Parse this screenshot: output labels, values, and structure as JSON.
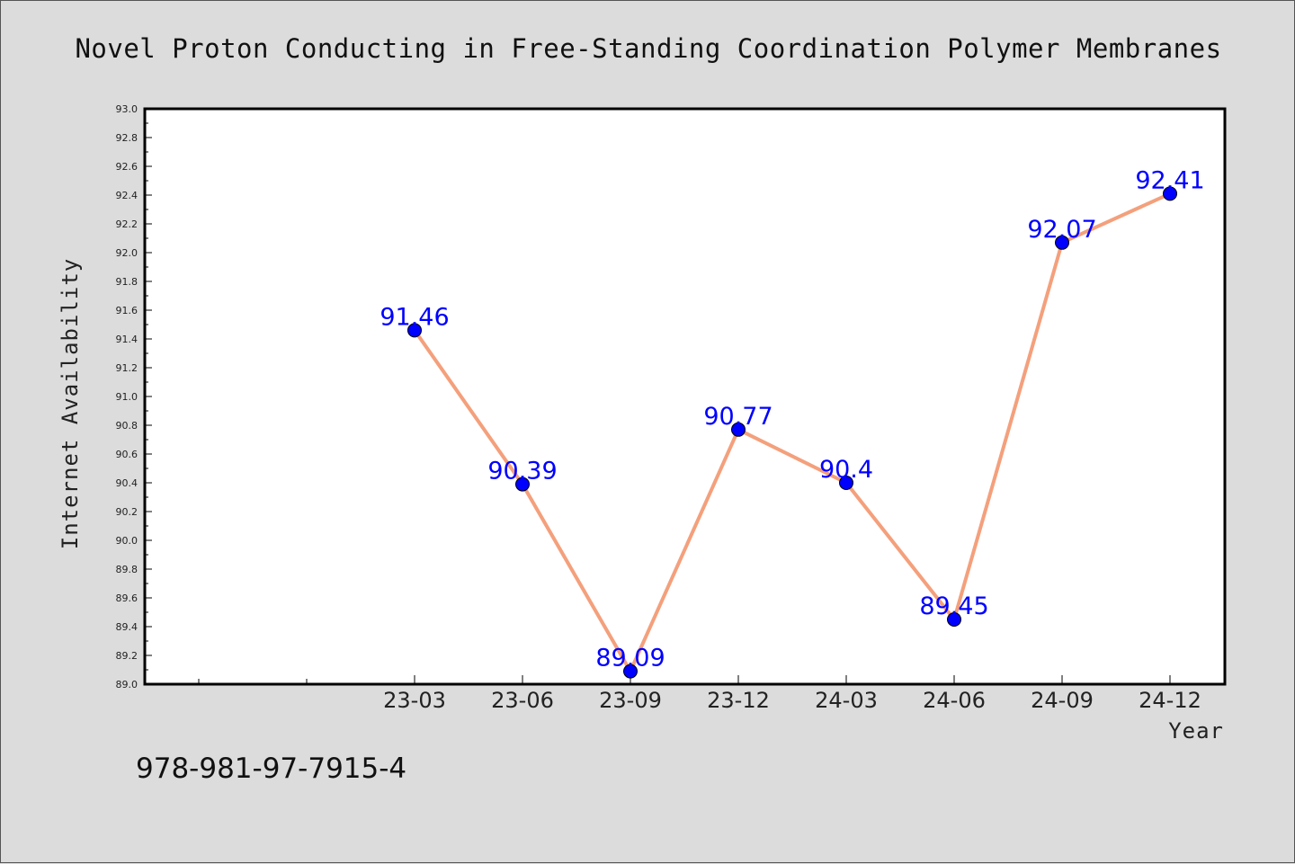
{
  "chart_data": {
    "type": "line",
    "title": "Novel Proton Conducting in Free-Standing Coordination Polymer Membranes",
    "xlabel": "Year",
    "ylabel": "Internet Availability",
    "categories": [
      "23-03",
      "23-06",
      "23-09",
      "23-12",
      "24-03",
      "24-06",
      "24-09",
      "24-12"
    ],
    "series": [
      {
        "values": [
          91.46,
          90.39,
          89.09,
          90.77,
          90.4,
          89.45,
          92.07,
          92.41
        ],
        "value_labels": [
          "91.46",
          "90.39",
          "89.09",
          "90.77",
          "90.4",
          "89.45",
          "92.07",
          "92.41"
        ],
        "line_color": "#f4a07c",
        "marker_color": "#0000ff"
      }
    ],
    "ylim": [
      89.0,
      93.0
    ],
    "y_ticks": [
      "89.0",
      "89.2",
      "89.4",
      "89.6",
      "89.8",
      "90.0",
      "90.2",
      "90.4",
      "90.6",
      "90.8",
      "91.0",
      "91.2",
      "91.4",
      "91.6",
      "91.8",
      "92.0",
      "92.2",
      "92.4",
      "92.6",
      "92.8",
      "93.0"
    ],
    "grid": false,
    "legend": "none"
  },
  "footer": {
    "isbn": "978-981-97-7915-4"
  },
  "colors": {
    "background": "#dcdcdc",
    "plot_area": "#ffffff",
    "line": "#f4a07c",
    "marker": "#0000ff",
    "data_label": "#0000ff"
  }
}
